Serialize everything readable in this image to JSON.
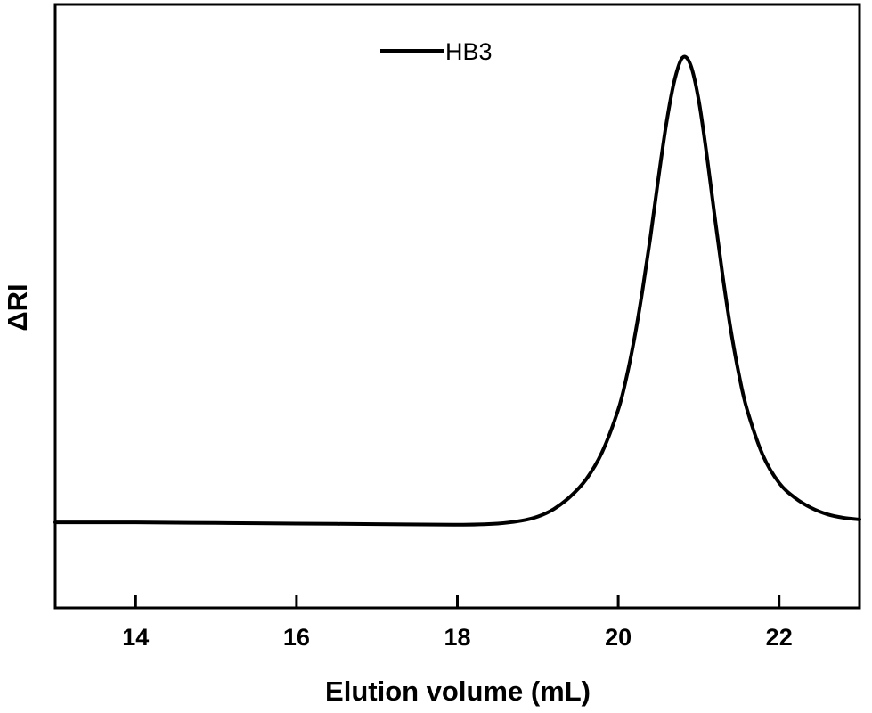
{
  "chart_data": {
    "type": "line",
    "title": "",
    "xlabel": "Elution volume (mL)",
    "ylabel": "ΔRI",
    "xlim": [
      13,
      23
    ],
    "ylim": [
      0,
      1
    ],
    "x_ticks": [
      14,
      16,
      18,
      20,
      22
    ],
    "x_tick_labels": [
      "14",
      "16",
      "18",
      "20",
      "22"
    ],
    "y_ticks_shown": false,
    "grid": false,
    "legend": {
      "position": "top-center",
      "entries": [
        "HB3"
      ]
    },
    "series": [
      {
        "name": "HB3",
        "color": "#000000",
        "x": [
          13.0,
          14.0,
          15.0,
          16.0,
          17.0,
          18.0,
          18.5,
          18.8,
          19.0,
          19.2,
          19.4,
          19.6,
          19.8,
          20.0,
          20.1,
          20.2,
          20.3,
          20.4,
          20.5,
          20.6,
          20.7,
          20.8,
          20.9,
          21.0,
          21.1,
          21.2,
          21.3,
          21.4,
          21.5,
          21.6,
          21.8,
          22.0,
          22.2,
          22.4,
          22.6,
          22.8,
          23.0
        ],
        "y": [
          0.147,
          0.147,
          0.146,
          0.145,
          0.144,
          0.143,
          0.145,
          0.15,
          0.157,
          0.17,
          0.191,
          0.221,
          0.268,
          0.341,
          0.395,
          0.463,
          0.545,
          0.638,
          0.74,
          0.835,
          0.908,
          0.947,
          0.934,
          0.874,
          0.78,
          0.673,
          0.57,
          0.478,
          0.402,
          0.342,
          0.262,
          0.215,
          0.189,
          0.172,
          0.161,
          0.155,
          0.152
        ]
      }
    ]
  }
}
